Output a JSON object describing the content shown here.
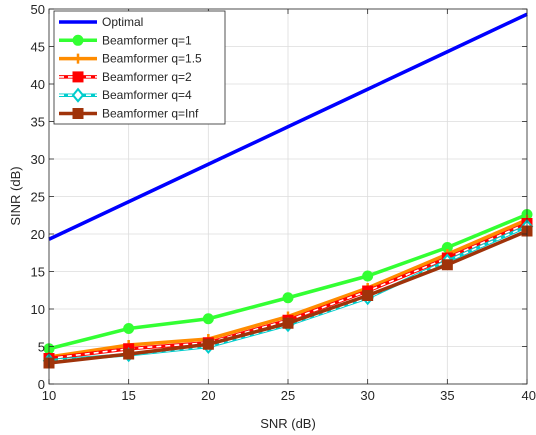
{
  "chart_data": {
    "type": "line",
    "title": "",
    "xlabel": "SNR (dB)",
    "ylabel": "SINR (dB)",
    "xlim": [
      10,
      40
    ],
    "ylim": [
      0,
      50
    ],
    "xticks": [
      10,
      15,
      20,
      25,
      30,
      35,
      40
    ],
    "yticks": [
      0,
      5,
      10,
      15,
      20,
      25,
      30,
      35,
      40,
      45,
      50
    ],
    "grid": true,
    "legend_position": "top-left",
    "x": [
      10,
      15,
      20,
      25,
      30,
      35,
      40
    ],
    "series": [
      {
        "name": "Optimal",
        "color": "#0000ff",
        "marker": "none",
        "dashed": false,
        "values": [
          19.3,
          24.3,
          29.3,
          34.3,
          39.3,
          44.3,
          49.3
        ]
      },
      {
        "name": "Beamformer q=1",
        "color": "#33ff33",
        "marker": "circle",
        "dashed": false,
        "values": [
          4.7,
          7.4,
          8.7,
          11.5,
          14.4,
          18.2,
          22.6
        ]
      },
      {
        "name": "Beamformer q=1.5",
        "color": "#ff8c00",
        "marker": "plus",
        "dashed": false,
        "values": [
          3.6,
          5.2,
          6.0,
          9.0,
          12.8,
          17.3,
          21.9
        ]
      },
      {
        "name": "Beamformer q=2",
        "color": "#ff0000",
        "marker": "square",
        "dashed": true,
        "values": [
          3.4,
          4.7,
          5.5,
          8.5,
          12.4,
          16.8,
          21.4
        ]
      },
      {
        "name": "Beamformer q=4",
        "color": "#00cccc",
        "marker": "diamond",
        "dashed": true,
        "values": [
          3.1,
          3.9,
          5.0,
          7.9,
          11.5,
          16.4,
          21.0
        ]
      },
      {
        "name": "Beamformer q=Inf",
        "color": "#a0330a",
        "marker": "square",
        "dashed": false,
        "values": [
          2.8,
          4.0,
          5.3,
          8.1,
          11.8,
          15.9,
          20.4
        ]
      }
    ]
  }
}
